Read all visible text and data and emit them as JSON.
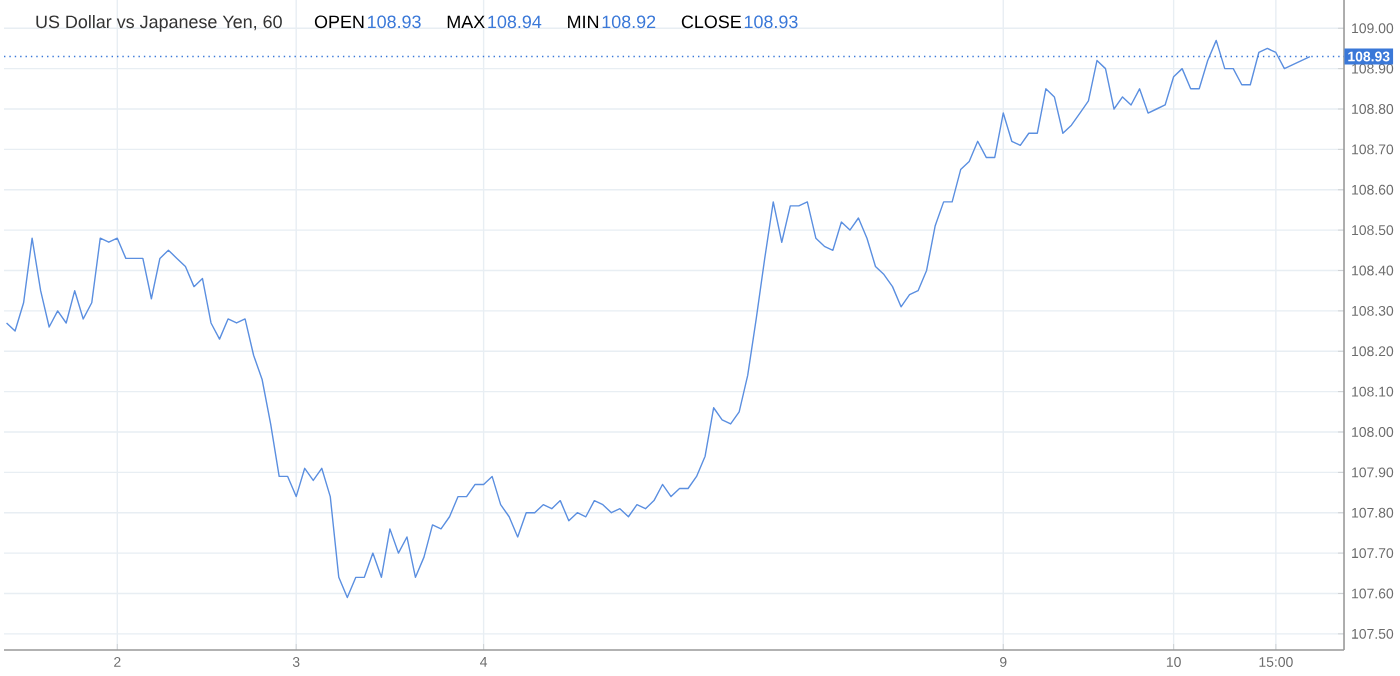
{
  "chart_data": {
    "type": "line",
    "title": "US Dollar vs Japanese Yen, 60",
    "annotations": [
      "OPEN",
      "108.93",
      "MAX",
      "108.94",
      "MIN",
      "108.92",
      "CLOSE",
      "108.93"
    ],
    "categories": [
      null,
      null,
      null,
      null,
      null,
      null,
      null,
      null,
      null,
      null,
      null,
      null,
      null,
      "2",
      null,
      null,
      null,
      null,
      null,
      null,
      null,
      null,
      null,
      null,
      null,
      null,
      null,
      null,
      null,
      null,
      null,
      null,
      null,
      null,
      "3",
      null,
      null,
      null,
      null,
      null,
      null,
      null,
      null,
      null,
      null,
      null,
      null,
      null,
      null,
      null,
      null,
      null,
      null,
      null,
      null,
      null,
      "4",
      null,
      null,
      null,
      null,
      null,
      null,
      null,
      null,
      null,
      null,
      null,
      null,
      null,
      null,
      null,
      null,
      null,
      null,
      null,
      null,
      null,
      null,
      null,
      null,
      null,
      null,
      null,
      null,
      null,
      null,
      null,
      null,
      null,
      null,
      null,
      null,
      null,
      null,
      null,
      null,
      null,
      null,
      null,
      null,
      null,
      null,
      null,
      null,
      null,
      null,
      null,
      null,
      null,
      null,
      null,
      null,
      null,
      null,
      null,
      null,
      "9",
      null,
      null,
      null,
      null,
      null,
      null,
      null,
      null,
      null,
      null,
      null,
      null,
      null,
      null,
      null,
      null,
      null,
      null,
      null,
      "10",
      null,
      null,
      null,
      null,
      null,
      null,
      null,
      null,
      null,
      null,
      null,
      "15:00",
      null,
      null,
      null,
      null
    ],
    "series": [
      {
        "color": "#5b8fe0",
        "values": [
          108.27,
          108.25,
          108.32,
          108.48,
          108.35,
          108.26,
          108.3,
          108.27,
          108.35,
          108.28,
          108.32,
          108.48,
          108.47,
          108.48,
          108.43,
          108.43,
          108.43,
          108.33,
          108.43,
          108.45,
          108.43,
          108.41,
          108.36,
          108.38,
          108.27,
          108.23,
          108.28,
          108.27,
          108.28,
          108.19,
          108.13,
          108.02,
          107.89,
          107.89,
          107.84,
          107.91,
          107.88,
          107.91,
          107.84,
          107.64,
          107.59,
          107.64,
          107.64,
          107.7,
          107.64,
          107.76,
          107.7,
          107.74,
          107.64,
          107.69,
          107.77,
          107.76,
          107.79,
          107.84,
          107.84,
          107.87,
          107.87,
          107.89,
          107.82,
          107.79,
          107.74,
          107.8,
          107.8,
          107.82,
          107.81,
          107.83,
          107.78,
          107.8,
          107.79,
          107.83,
          107.82,
          107.8,
          107.81,
          107.79,
          107.82,
          107.81,
          107.83,
          107.87,
          107.84,
          107.86,
          107.86,
          107.89,
          107.94,
          108.06,
          108.03,
          108.02,
          108.05,
          108.14,
          108.28,
          108.43,
          108.57,
          108.47,
          108.56,
          108.56,
          108.57,
          108.48,
          108.46,
          108.45,
          108.52,
          108.5,
          108.53,
          108.48,
          108.41,
          108.39,
          108.36,
          108.31,
          108.34,
          108.35,
          108.4,
          108.51,
          108.57,
          108.57,
          108.65,
          108.67,
          108.72,
          108.68,
          108.68,
          108.79,
          108.72,
          108.71,
          108.74,
          108.74,
          108.85,
          108.83,
          108.74,
          108.76,
          108.79,
          108.82,
          108.92,
          108.9,
          108.8,
          108.83,
          108.81,
          108.85,
          108.79,
          108.8,
          108.81,
          108.88,
          108.9,
          108.85,
          108.85,
          108.92,
          108.97,
          108.9,
          108.9,
          108.86,
          108.86,
          108.94,
          108.95,
          108.94,
          108.9,
          108.91,
          108.92,
          108.93
        ]
      }
    ],
    "ylim": [
      107.46,
      109.07
    ],
    "yticks": [
      {
        "value": 107.5,
        "label": "107.50"
      },
      {
        "value": 107.6,
        "label": "107.60"
      },
      {
        "value": 107.7,
        "label": "107.70"
      },
      {
        "value": 107.8,
        "label": "107.80"
      },
      {
        "value": 107.9,
        "label": "107.90"
      },
      {
        "value": 108.0,
        "label": "108.00"
      },
      {
        "value": 108.1,
        "label": "108.10"
      },
      {
        "value": 108.2,
        "label": "108.20"
      },
      {
        "value": 108.3,
        "label": "108.30"
      },
      {
        "value": 108.4,
        "label": "108.40"
      },
      {
        "value": 108.5,
        "label": "108.50"
      },
      {
        "value": 108.6,
        "label": "108.60"
      },
      {
        "value": 108.7,
        "label": "108.70"
      },
      {
        "value": 108.8,
        "label": "108.80"
      },
      {
        "value": 108.9,
        "label": "108.90"
      },
      {
        "value": 109.0,
        "label": "109.00"
      }
    ],
    "ref_lines": [
      {
        "axis": "y",
        "value": 108.93,
        "label": "108.93",
        "color": "#3a78d8",
        "line_style": "dotted"
      }
    ],
    "grid": true,
    "marker": "none",
    "line_style": "solid"
  }
}
